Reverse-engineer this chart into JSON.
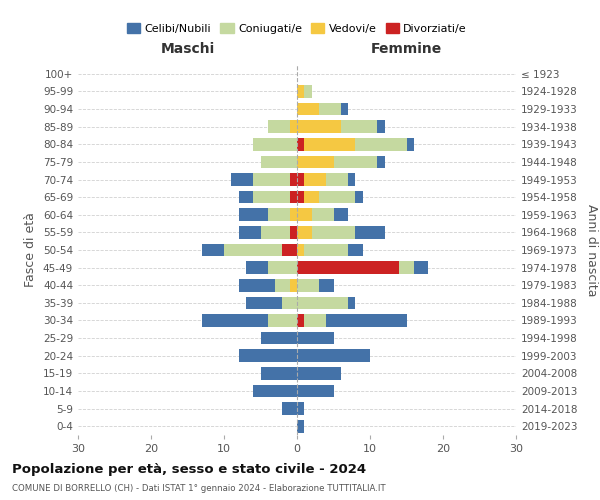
{
  "age_groups": [
    "0-4",
    "5-9",
    "10-14",
    "15-19",
    "20-24",
    "25-29",
    "30-34",
    "35-39",
    "40-44",
    "45-49",
    "50-54",
    "55-59",
    "60-64",
    "65-69",
    "70-74",
    "75-79",
    "80-84",
    "85-89",
    "90-94",
    "95-99",
    "100+"
  ],
  "birth_years": [
    "2019-2023",
    "2014-2018",
    "2009-2013",
    "2004-2008",
    "1999-2003",
    "1994-1998",
    "1989-1993",
    "1984-1988",
    "1979-1983",
    "1974-1978",
    "1969-1973",
    "1964-1968",
    "1959-1963",
    "1954-1958",
    "1949-1953",
    "1944-1948",
    "1939-1943",
    "1934-1938",
    "1929-1933",
    "1924-1928",
    "≤ 1923"
  ],
  "colors": {
    "celibi": "#4472a8",
    "coniugati": "#c5d9a0",
    "vedovi": "#f5c842",
    "divorziati": "#cc2222"
  },
  "maschi": {
    "celibi": [
      0,
      2,
      6,
      5,
      8,
      5,
      9,
      5,
      5,
      3,
      3,
      3,
      4,
      2,
      3,
      0,
      0,
      0,
      0,
      0,
      0
    ],
    "coniugati": [
      0,
      0,
      0,
      0,
      0,
      0,
      4,
      2,
      2,
      4,
      8,
      4,
      3,
      5,
      5,
      5,
      6,
      3,
      0,
      0,
      0
    ],
    "vedovi": [
      0,
      0,
      0,
      0,
      0,
      0,
      0,
      0,
      1,
      0,
      0,
      0,
      1,
      0,
      0,
      0,
      0,
      1,
      0,
      0,
      0
    ],
    "divorziati": [
      0,
      0,
      0,
      0,
      0,
      0,
      0,
      0,
      0,
      0,
      2,
      1,
      0,
      1,
      1,
      0,
      0,
      0,
      0,
      0,
      0
    ]
  },
  "femmine": {
    "celibi": [
      1,
      1,
      5,
      6,
      10,
      5,
      11,
      1,
      2,
      2,
      2,
      4,
      2,
      1,
      1,
      1,
      1,
      1,
      1,
      0,
      0
    ],
    "coniugati": [
      0,
      0,
      0,
      0,
      0,
      0,
      3,
      7,
      3,
      2,
      6,
      6,
      3,
      5,
      3,
      6,
      7,
      5,
      3,
      1,
      0
    ],
    "vedovi": [
      0,
      0,
      0,
      0,
      0,
      0,
      0,
      0,
      0,
      0,
      1,
      2,
      2,
      2,
      3,
      5,
      7,
      6,
      3,
      1,
      0
    ],
    "divorziati": [
      0,
      0,
      0,
      0,
      0,
      0,
      1,
      0,
      0,
      14,
      0,
      0,
      0,
      1,
      1,
      0,
      1,
      0,
      0,
      0,
      0
    ]
  },
  "title": "Popolazione per età, sesso e stato civile - 2024",
  "subtitle": "COMUNE DI BORRELLO (CH) - Dati ISTAT 1° gennaio 2024 - Elaborazione TUTTITALIA.IT",
  "xlabel_left": "Maschi",
  "xlabel_right": "Femmine",
  "ylabel_left": "Fasce di età",
  "ylabel_right": "Anni di nascita",
  "xlim": 30,
  "bg_color": "#ffffff",
  "grid_color": "#cccccc",
  "legend_labels": [
    "Celibi/Nubili",
    "Coniugati/e",
    "Vedovi/e",
    "Divorziati/e"
  ]
}
